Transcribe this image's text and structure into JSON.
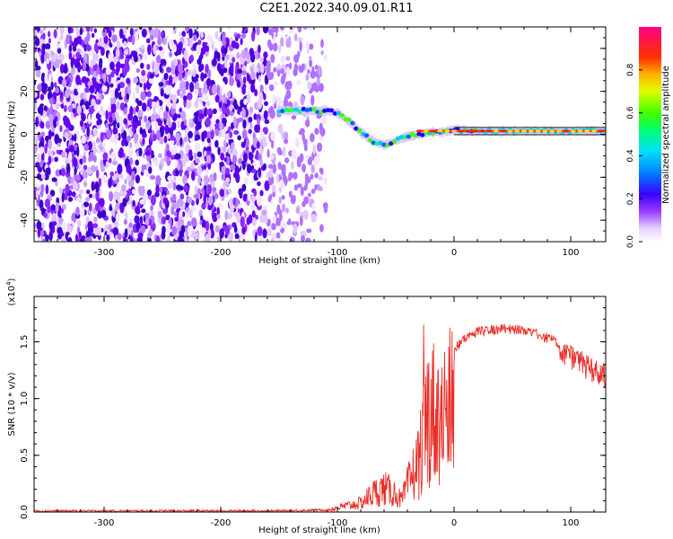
{
  "title": "C2E1.2022.340.09.01.R11",
  "colorbar": {
    "label": "Normalized spectral amplitude",
    "ticks": [
      "0.0",
      "0.2",
      "0.4",
      "0.6",
      "0.8"
    ]
  },
  "chart_data": [
    {
      "type": "heatmap",
      "xlabel": "Height of straight line (km)",
      "ylabel": "Frequency (Hz)",
      "xlim": [
        -360,
        130
      ],
      "ylim": [
        -50,
        50
      ],
      "xticks": [
        "-300",
        "-200",
        "-100",
        "0",
        "100"
      ],
      "yticks": [
        "-40",
        "-20",
        "0",
        "20",
        "40"
      ],
      "noise_region_x": [
        -360,
        -110
      ],
      "signal_track": [
        {
          "x": -150,
          "y": 11
        },
        {
          "x": -130,
          "y": 11
        },
        {
          "x": -110,
          "y": 11
        },
        {
          "x": -100,
          "y": 10
        },
        {
          "x": -90,
          "y": 6
        },
        {
          "x": -80,
          "y": 1
        },
        {
          "x": -70,
          "y": -3
        },
        {
          "x": -60,
          "y": -5
        },
        {
          "x": -50,
          "y": -3
        },
        {
          "x": -40,
          "y": -1
        },
        {
          "x": -30,
          "y": 0
        },
        {
          "x": -20,
          "y": 1
        },
        {
          "x": -10,
          "y": 1
        },
        {
          "x": 0,
          "y": 2
        },
        {
          "x": 20,
          "y": 1.5
        },
        {
          "x": 60,
          "y": 1.5
        },
        {
          "x": 100,
          "y": 1.5
        },
        {
          "x": 130,
          "y": 1.5
        }
      ]
    },
    {
      "type": "line",
      "xlabel": "Height of straight line (km)",
      "ylabel": "SNR (10 * v/v)",
      "yscale_label": "(x10",
      "yscale_exp": "4",
      "yscale_close": ")",
      "xlim": [
        -360,
        130
      ],
      "ylim": [
        0,
        1.9
      ],
      "xticks": [
        "-300",
        "-200",
        "-100",
        "0",
        "100"
      ],
      "yticks": [
        "0.0",
        "0.5",
        "1.0",
        "1.5"
      ],
      "series": [
        {
          "color": "#e8302a",
          "envelope": [
            {
              "x": -360,
              "y": 0.01
            },
            {
              "x": -150,
              "y": 0.01
            },
            {
              "x": -110,
              "y": 0.02
            },
            {
              "x": -100,
              "y": 0.06
            },
            {
              "x": -80,
              "y": 0.12
            },
            {
              "x": -70,
              "y": 0.25
            },
            {
              "x": -60,
              "y": 0.32
            },
            {
              "x": -50,
              "y": 0.25
            },
            {
              "x": -45,
              "y": 0.15
            },
            {
              "x": -40,
              "y": 0.35
            },
            {
              "x": -30,
              "y": 0.7
            },
            {
              "x": -25,
              "y": 1.2
            },
            {
              "x": -20,
              "y": 1.4
            },
            {
              "x": -15,
              "y": 1.3
            },
            {
              "x": -10,
              "y": 1.35
            },
            {
              "x": 0,
              "y": 1.45
            },
            {
              "x": 10,
              "y": 1.55
            },
            {
              "x": 20,
              "y": 1.6
            },
            {
              "x": 40,
              "y": 1.63
            },
            {
              "x": 60,
              "y": 1.62
            },
            {
              "x": 80,
              "y": 1.55
            },
            {
              "x": 100,
              "y": 1.45
            },
            {
              "x": 120,
              "y": 1.32
            },
            {
              "x": 130,
              "y": 1.28
            }
          ]
        }
      ]
    }
  ]
}
